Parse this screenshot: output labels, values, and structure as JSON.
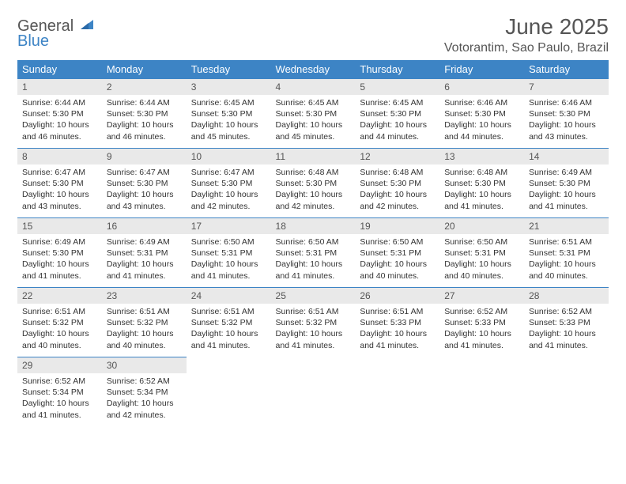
{
  "logo": {
    "word1": "General",
    "word2": "Blue"
  },
  "title": "June 2025",
  "location": "Votorantim, Sao Paulo, Brazil",
  "colors": {
    "header_bg": "#3d84c5",
    "header_text": "#ffffff",
    "daynum_bg": "#e9e9e9",
    "text": "#333333",
    "title_text": "#555555",
    "page_bg": "#ffffff"
  },
  "fonts": {
    "title_size": 28,
    "location_size": 16,
    "header_size": 13,
    "body_size": 10.5
  },
  "weekdays": [
    "Sunday",
    "Monday",
    "Tuesday",
    "Wednesday",
    "Thursday",
    "Friday",
    "Saturday"
  ],
  "weeks": [
    [
      {
        "n": "1",
        "sr": "6:44 AM",
        "ss": "5:30 PM",
        "dl": "10 hours and 46 minutes."
      },
      {
        "n": "2",
        "sr": "6:44 AM",
        "ss": "5:30 PM",
        "dl": "10 hours and 46 minutes."
      },
      {
        "n": "3",
        "sr": "6:45 AM",
        "ss": "5:30 PM",
        "dl": "10 hours and 45 minutes."
      },
      {
        "n": "4",
        "sr": "6:45 AM",
        "ss": "5:30 PM",
        "dl": "10 hours and 45 minutes."
      },
      {
        "n": "5",
        "sr": "6:45 AM",
        "ss": "5:30 PM",
        "dl": "10 hours and 44 minutes."
      },
      {
        "n": "6",
        "sr": "6:46 AM",
        "ss": "5:30 PM",
        "dl": "10 hours and 44 minutes."
      },
      {
        "n": "7",
        "sr": "6:46 AM",
        "ss": "5:30 PM",
        "dl": "10 hours and 43 minutes."
      }
    ],
    [
      {
        "n": "8",
        "sr": "6:47 AM",
        "ss": "5:30 PM",
        "dl": "10 hours and 43 minutes."
      },
      {
        "n": "9",
        "sr": "6:47 AM",
        "ss": "5:30 PM",
        "dl": "10 hours and 43 minutes."
      },
      {
        "n": "10",
        "sr": "6:47 AM",
        "ss": "5:30 PM",
        "dl": "10 hours and 42 minutes."
      },
      {
        "n": "11",
        "sr": "6:48 AM",
        "ss": "5:30 PM",
        "dl": "10 hours and 42 minutes."
      },
      {
        "n": "12",
        "sr": "6:48 AM",
        "ss": "5:30 PM",
        "dl": "10 hours and 42 minutes."
      },
      {
        "n": "13",
        "sr": "6:48 AM",
        "ss": "5:30 PM",
        "dl": "10 hours and 41 minutes."
      },
      {
        "n": "14",
        "sr": "6:49 AM",
        "ss": "5:30 PM",
        "dl": "10 hours and 41 minutes."
      }
    ],
    [
      {
        "n": "15",
        "sr": "6:49 AM",
        "ss": "5:30 PM",
        "dl": "10 hours and 41 minutes."
      },
      {
        "n": "16",
        "sr": "6:49 AM",
        "ss": "5:31 PM",
        "dl": "10 hours and 41 minutes."
      },
      {
        "n": "17",
        "sr": "6:50 AM",
        "ss": "5:31 PM",
        "dl": "10 hours and 41 minutes."
      },
      {
        "n": "18",
        "sr": "6:50 AM",
        "ss": "5:31 PM",
        "dl": "10 hours and 41 minutes."
      },
      {
        "n": "19",
        "sr": "6:50 AM",
        "ss": "5:31 PM",
        "dl": "10 hours and 40 minutes."
      },
      {
        "n": "20",
        "sr": "6:50 AM",
        "ss": "5:31 PM",
        "dl": "10 hours and 40 minutes."
      },
      {
        "n": "21",
        "sr": "6:51 AM",
        "ss": "5:31 PM",
        "dl": "10 hours and 40 minutes."
      }
    ],
    [
      {
        "n": "22",
        "sr": "6:51 AM",
        "ss": "5:32 PM",
        "dl": "10 hours and 40 minutes."
      },
      {
        "n": "23",
        "sr": "6:51 AM",
        "ss": "5:32 PM",
        "dl": "10 hours and 40 minutes."
      },
      {
        "n": "24",
        "sr": "6:51 AM",
        "ss": "5:32 PM",
        "dl": "10 hours and 41 minutes."
      },
      {
        "n": "25",
        "sr": "6:51 AM",
        "ss": "5:32 PM",
        "dl": "10 hours and 41 minutes."
      },
      {
        "n": "26",
        "sr": "6:51 AM",
        "ss": "5:33 PM",
        "dl": "10 hours and 41 minutes."
      },
      {
        "n": "27",
        "sr": "6:52 AM",
        "ss": "5:33 PM",
        "dl": "10 hours and 41 minutes."
      },
      {
        "n": "28",
        "sr": "6:52 AM",
        "ss": "5:33 PM",
        "dl": "10 hours and 41 minutes."
      }
    ],
    [
      {
        "n": "29",
        "sr": "6:52 AM",
        "ss": "5:34 PM",
        "dl": "10 hours and 41 minutes."
      },
      {
        "n": "30",
        "sr": "6:52 AM",
        "ss": "5:34 PM",
        "dl": "10 hours and 42 minutes."
      },
      null,
      null,
      null,
      null,
      null
    ]
  ],
  "labels": {
    "sunrise": "Sunrise:",
    "sunset": "Sunset:",
    "daylight": "Daylight:"
  }
}
